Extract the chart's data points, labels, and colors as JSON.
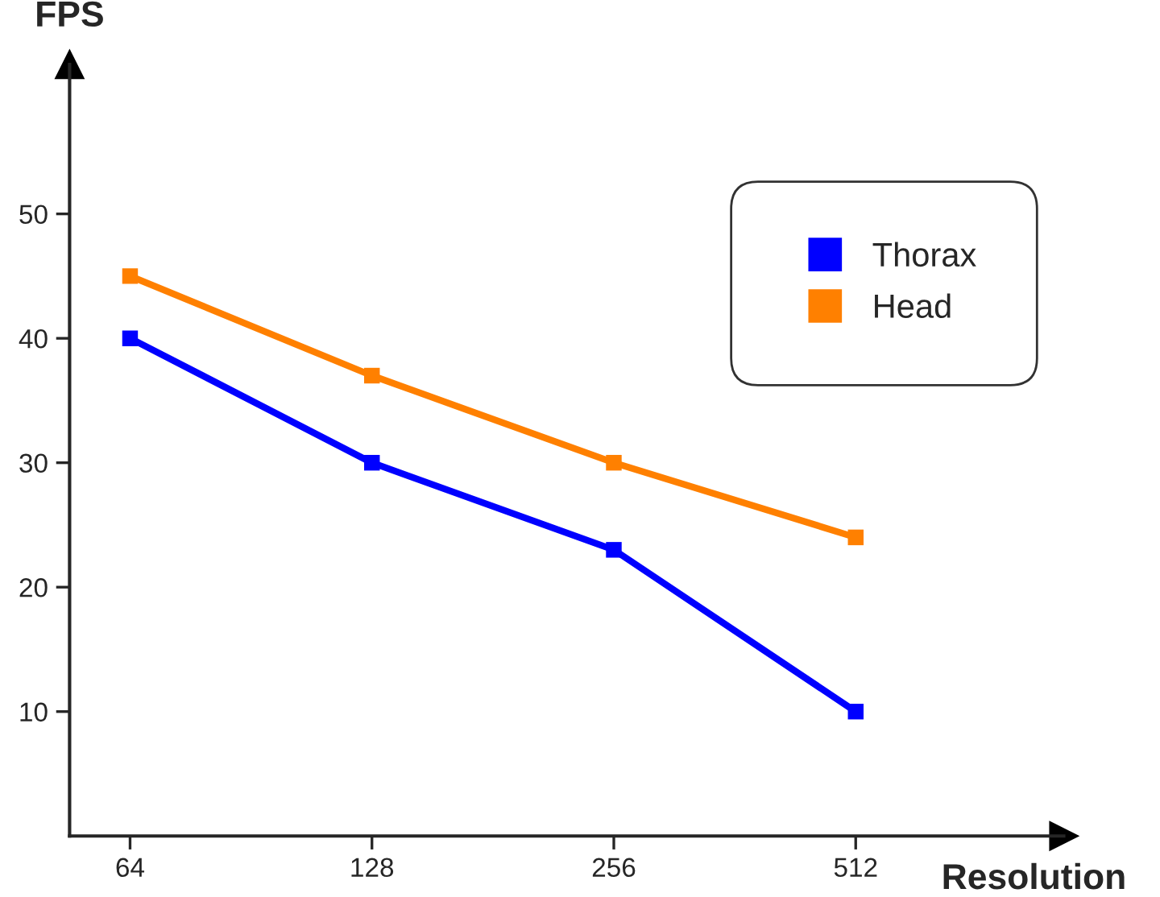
{
  "chart_data": {
    "type": "line",
    "xlabel": "Resolution",
    "ylabel": "FPS",
    "categories": [
      "64",
      "128",
      "256",
      "512"
    ],
    "series": [
      {
        "name": "Thorax",
        "color": "#0000ff",
        "values": [
          40,
          30,
          23,
          10
        ]
      },
      {
        "name": "Head",
        "color": "#ff8000",
        "values": [
          45,
          37,
          30,
          24
        ]
      }
    ],
    "ylim": [
      0,
      62
    ],
    "yticks": [
      10,
      20,
      30,
      40,
      50
    ],
    "grid": false,
    "legend": "top right",
    "marker": "square",
    "line_style": "solid"
  }
}
